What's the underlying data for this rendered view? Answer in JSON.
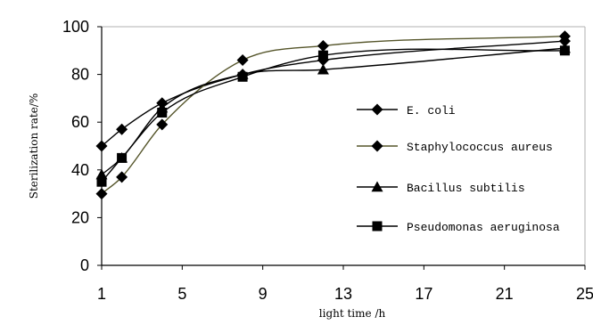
{
  "chart_data": {
    "type": "line",
    "xlabel": "light time /h",
    "ylabel": "Sterilization rate/%",
    "xlim": [
      1,
      25
    ],
    "ylim": [
      0,
      100
    ],
    "xticks": [
      1,
      5,
      9,
      13,
      17,
      21,
      25
    ],
    "yticks": [
      0,
      20,
      40,
      60,
      80,
      100
    ],
    "grid": false,
    "legend_position": "right",
    "series": [
      {
        "name": "E. coli",
        "marker": "diamond",
        "line_color": "#000000",
        "x": [
          1,
          2,
          4,
          8,
          12,
          24
        ],
        "y": [
          50,
          57,
          68,
          80,
          86,
          94
        ]
      },
      {
        "name": "Staphylococcus aureus",
        "marker": "diamond",
        "line_color": "#55552a",
        "x": [
          1,
          2,
          4,
          8,
          12,
          24
        ],
        "y": [
          30,
          37,
          59,
          86,
          92,
          96
        ]
      },
      {
        "name": "Bacillus subtilis",
        "marker": "triangle",
        "line_color": "#000000",
        "x": [
          1,
          2,
          4,
          8,
          12,
          24
        ],
        "y": [
          38,
          45,
          66,
          80,
          82,
          91
        ]
      },
      {
        "name": "Pseudomonas aeruginosa",
        "marker": "square",
        "line_color": "#000000",
        "x": [
          1,
          2,
          4,
          8,
          12,
          24
        ],
        "y": [
          35,
          45,
          64,
          79,
          88,
          90
        ]
      }
    ]
  }
}
